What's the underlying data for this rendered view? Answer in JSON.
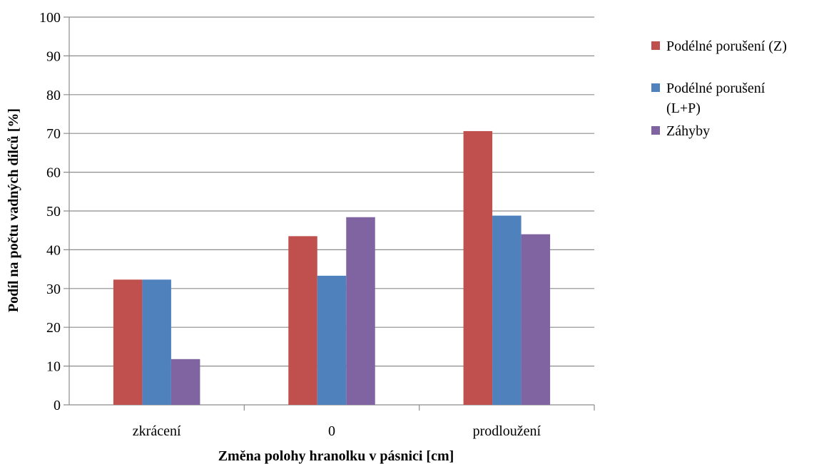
{
  "chart_data": {
    "type": "bar",
    "title": "",
    "xlabel": "Změna polohy hranolku v pásnici [cm]",
    "ylabel": "Podíl na počtu vadných dílců [%]",
    "categories": [
      "zkrácení",
      "0",
      "prodloužení"
    ],
    "ylim": [
      0,
      100
    ],
    "yticks": [
      0,
      10,
      20,
      30,
      40,
      50,
      60,
      70,
      80,
      90,
      100
    ],
    "grid": true,
    "legend_position": "right",
    "series": [
      {
        "name": "Podélné porušení (Z)",
        "color": "#c0504d",
        "values": [
          32.3,
          43.5,
          70.6
        ]
      },
      {
        "name": "Podélné porušení (L+P)",
        "color": "#4f81bd",
        "values": [
          32.3,
          33.3,
          48.8
        ]
      },
      {
        "name": "Záhyby",
        "color": "#8064a2",
        "values": [
          11.8,
          48.4,
          44.0
        ]
      }
    ]
  }
}
